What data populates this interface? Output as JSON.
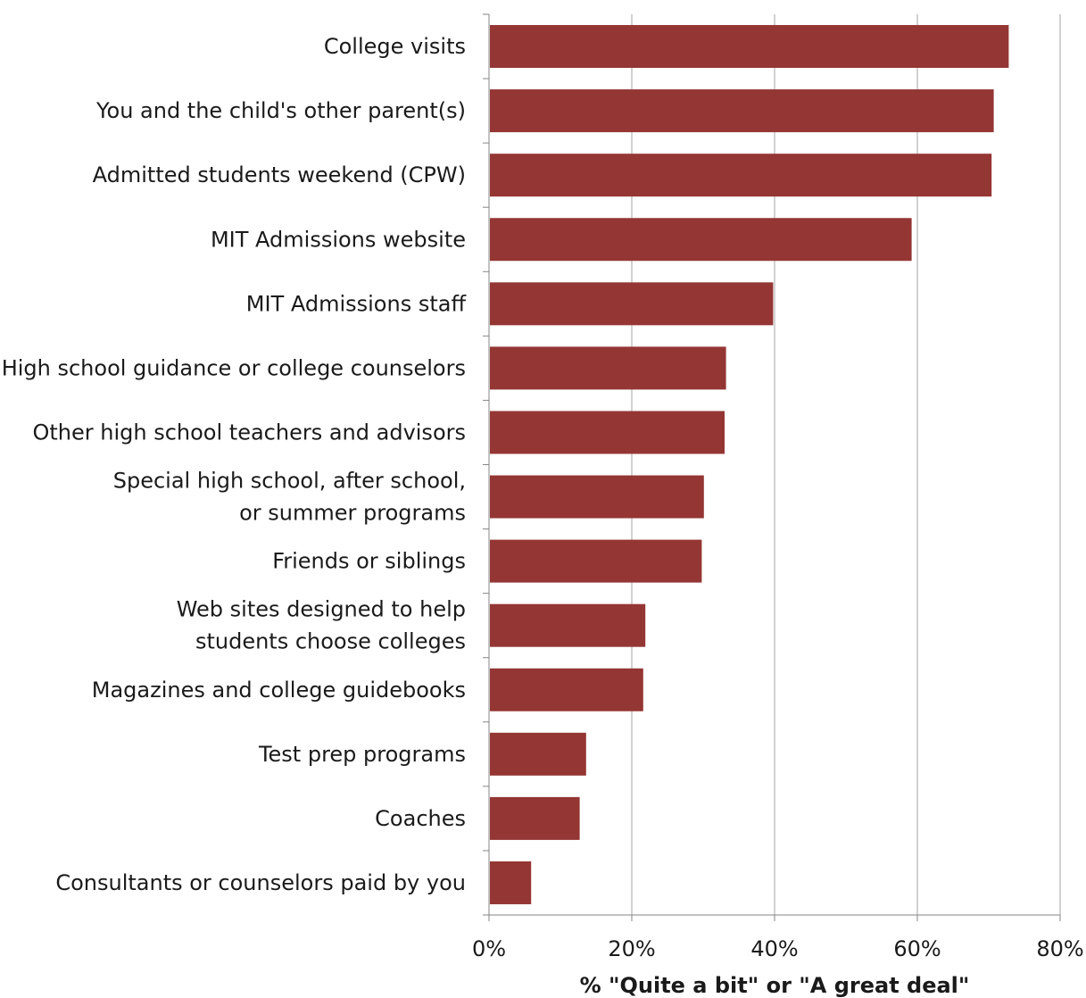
{
  "chart_data": {
    "type": "bar",
    "orientation": "horizontal",
    "categories": [
      "College visits",
      "You and the child's other parent(s)",
      "Admitted students weekend (CPW)",
      "MIT Admissions website",
      "MIT Admissions staff",
      "High school guidance or college counselors",
      "Other high school teachers and advisors",
      "Special high school, after school, or summer programs",
      "Friends or siblings",
      "Web sites designed to help students choose colleges",
      "Magazines and college guidebooks",
      "Test prep programs",
      "Coaches",
      "Consultants or counselors paid by you"
    ],
    "category_lines": [
      [
        "College visits"
      ],
      [
        "You and the child's other parent(s)"
      ],
      [
        "Admitted students weekend (CPW)"
      ],
      [
        "MIT Admissions website"
      ],
      [
        "MIT Admissions staff"
      ],
      [
        "High school guidance or college counselors"
      ],
      [
        "Other high school teachers and advisors"
      ],
      [
        "Special high school, after school,",
        "or summer programs"
      ],
      [
        "Friends or siblings"
      ],
      [
        "Web sites designed to help",
        "students choose colleges"
      ],
      [
        "Magazines and college guidebooks"
      ],
      [
        "Test prep programs"
      ],
      [
        "Coaches"
      ],
      [
        "Consultants or counselors paid by you"
      ]
    ],
    "values": [
      72.8,
      70.7,
      70.4,
      59.2,
      39.8,
      33.2,
      33.0,
      30.1,
      29.8,
      21.9,
      21.6,
      13.6,
      12.7,
      5.9
    ],
    "title": "",
    "xlabel": "% \"Quite a bit\" or \"A great deal\"",
    "ylabel": "",
    "xlim": [
      0,
      80
    ],
    "xticks": [
      0,
      20,
      40,
      60,
      80
    ],
    "xtick_labels": [
      "0%",
      "20%",
      "40%",
      "60%",
      "80%"
    ],
    "grid": "vertical",
    "legend": "none",
    "bar_color": "#943634",
    "grid_color": "#a6a6a6",
    "axis_color": "#868686"
  }
}
